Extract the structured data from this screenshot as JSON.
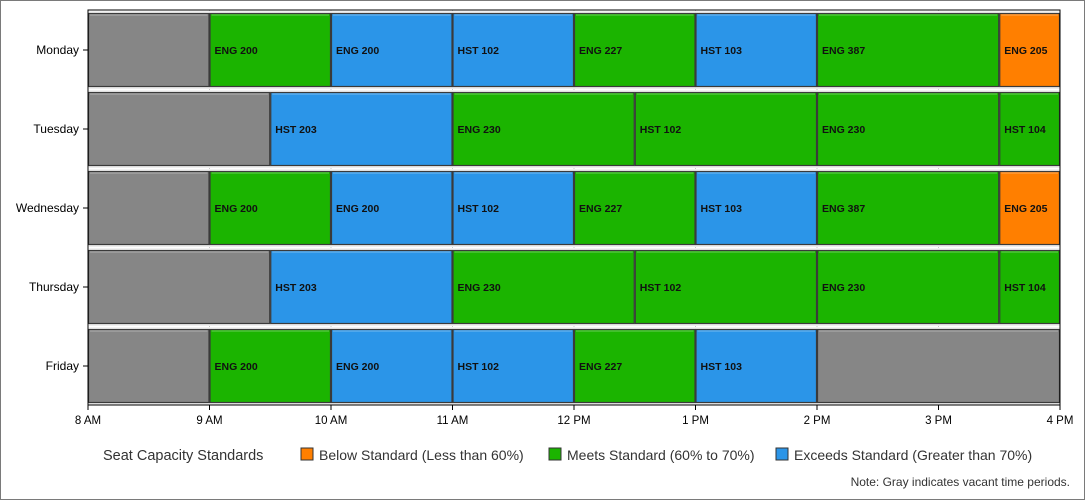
{
  "chart_data": {
    "type": "bar",
    "orientation": "horizontal",
    "stacked_timeline": true,
    "x_axis": {
      "range_hours": [
        8,
        16
      ],
      "tick_labels": [
        "8 AM",
        "9 AM",
        "10 AM",
        "11 AM",
        "12 PM",
        "1 PM",
        "2 PM",
        "3 PM",
        "4 PM"
      ]
    },
    "categories": [
      "Monday",
      "Tuesday",
      "Wednesday",
      "Thursday",
      "Friday"
    ],
    "status_colors": {
      "vacant": "#868686",
      "below": "#ff7f00",
      "meets": "#1bb400",
      "exceeds": "#2b95e8"
    },
    "rows": [
      {
        "day": "Monday",
        "segments": [
          {
            "start": 8,
            "end": 9,
            "status": "vacant",
            "label": ""
          },
          {
            "start": 9,
            "end": 10,
            "status": "meets",
            "label": "ENG 200"
          },
          {
            "start": 10,
            "end": 11,
            "status": "exceeds",
            "label": "ENG 200"
          },
          {
            "start": 11,
            "end": 12,
            "status": "exceeds",
            "label": "HST 102"
          },
          {
            "start": 12,
            "end": 13,
            "status": "meets",
            "label": "ENG 227"
          },
          {
            "start": 13,
            "end": 14,
            "status": "exceeds",
            "label": "HST 103"
          },
          {
            "start": 14,
            "end": 15.5,
            "status": "meets",
            "label": "ENG 387"
          },
          {
            "start": 15.5,
            "end": 16,
            "status": "below",
            "label": "ENG 205"
          }
        ]
      },
      {
        "day": "Tuesday",
        "segments": [
          {
            "start": 8,
            "end": 9.5,
            "status": "vacant",
            "label": ""
          },
          {
            "start": 9.5,
            "end": 11,
            "status": "exceeds",
            "label": "HST 203"
          },
          {
            "start": 11,
            "end": 12.5,
            "status": "meets",
            "label": "ENG 230"
          },
          {
            "start": 12.5,
            "end": 14,
            "status": "meets",
            "label": "HST 102"
          },
          {
            "start": 14,
            "end": 15.5,
            "status": "meets",
            "label": "ENG 230"
          },
          {
            "start": 15.5,
            "end": 16,
            "status": "meets",
            "label": "HST 104"
          }
        ]
      },
      {
        "day": "Wednesday",
        "segments": [
          {
            "start": 8,
            "end": 9,
            "status": "vacant",
            "label": ""
          },
          {
            "start": 9,
            "end": 10,
            "status": "meets",
            "label": "ENG 200"
          },
          {
            "start": 10,
            "end": 11,
            "status": "exceeds",
            "label": "ENG 200"
          },
          {
            "start": 11,
            "end": 12,
            "status": "exceeds",
            "label": "HST 102"
          },
          {
            "start": 12,
            "end": 13,
            "status": "meets",
            "label": "ENG 227"
          },
          {
            "start": 13,
            "end": 14,
            "status": "exceeds",
            "label": "HST 103"
          },
          {
            "start": 14,
            "end": 15.5,
            "status": "meets",
            "label": "ENG 387"
          },
          {
            "start": 15.5,
            "end": 16,
            "status": "below",
            "label": "ENG 205"
          }
        ]
      },
      {
        "day": "Thursday",
        "segments": [
          {
            "start": 8,
            "end": 9.5,
            "status": "vacant",
            "label": ""
          },
          {
            "start": 9.5,
            "end": 11,
            "status": "exceeds",
            "label": "HST 203"
          },
          {
            "start": 11,
            "end": 12.5,
            "status": "meets",
            "label": "ENG 230"
          },
          {
            "start": 12.5,
            "end": 14,
            "status": "meets",
            "label": "HST 102"
          },
          {
            "start": 14,
            "end": 15.5,
            "status": "meets",
            "label": "ENG 230"
          },
          {
            "start": 15.5,
            "end": 16,
            "status": "meets",
            "label": "HST 104"
          }
        ]
      },
      {
        "day": "Friday",
        "segments": [
          {
            "start": 8,
            "end": 9,
            "status": "vacant",
            "label": ""
          },
          {
            "start": 9,
            "end": 10,
            "status": "meets",
            "label": "ENG 200"
          },
          {
            "start": 10,
            "end": 11,
            "status": "exceeds",
            "label": "ENG 200"
          },
          {
            "start": 11,
            "end": 12,
            "status": "exceeds",
            "label": "HST 102"
          },
          {
            "start": 12,
            "end": 13,
            "status": "meets",
            "label": "ENG 227"
          },
          {
            "start": 13,
            "end": 14,
            "status": "exceeds",
            "label": "HST 103"
          },
          {
            "start": 14,
            "end": 16,
            "status": "vacant",
            "label": ""
          }
        ]
      }
    ],
    "legend": {
      "title": "Seat Capacity Standards",
      "items": [
        {
          "status": "below",
          "label": "Below Standard (Less than 60%)"
        },
        {
          "status": "meets",
          "label": "Meets Standard (60% to 70%)"
        },
        {
          "status": "exceeds",
          "label": "Exceeds Standard (Greater than 70%)"
        }
      ]
    },
    "note": "Note: Gray indicates vacant time periods.",
    "grid": true
  }
}
